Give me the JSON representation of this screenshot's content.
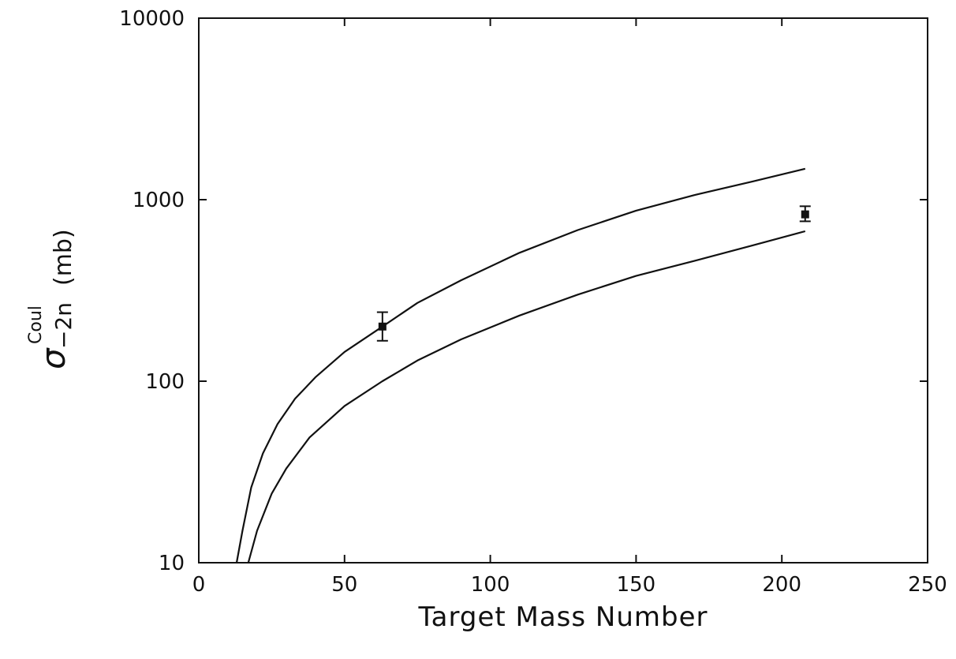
{
  "chart_data": {
    "type": "line",
    "title": "",
    "xlabel": "Target Mass Number",
    "ylabel": {
      "symbol": "σ",
      "superscript": "Coul",
      "subscript": "−2n",
      "unit": "(mb)"
    },
    "xlim": [
      0,
      250
    ],
    "ylim": [
      10,
      10000
    ],
    "yscale": "log",
    "grid": false,
    "legend": "none",
    "x_ticks": [
      "0",
      "50",
      "100",
      "150",
      "200",
      "250"
    ],
    "y_ticks": [
      "10",
      "100",
      "1000",
      "10000"
    ],
    "series": [
      {
        "style": "line",
        "x": [
          13,
          15,
          18,
          22,
          27,
          33,
          40,
          50,
          63,
          75,
          90,
          110,
          130,
          150,
          170,
          190,
          208
        ],
        "y": [
          10,
          15,
          26,
          40,
          58,
          80,
          105,
          145,
          200,
          270,
          360,
          510,
          680,
          870,
          1060,
          1260,
          1480
        ]
      },
      {
        "style": "line",
        "x": [
          17,
          20,
          25,
          30,
          38,
          50,
          63,
          75,
          90,
          110,
          130,
          150,
          170,
          190,
          208
        ],
        "y": [
          10,
          15,
          24,
          33,
          49,
          73,
          100,
          130,
          170,
          230,
          300,
          380,
          460,
          560,
          670
        ]
      },
      {
        "style": "points",
        "x": [
          63,
          208
        ],
        "y": [
          200,
          830
        ],
        "yerr_low": [
          167,
          760
        ],
        "yerr_high": [
          240,
          920
        ]
      }
    ]
  }
}
